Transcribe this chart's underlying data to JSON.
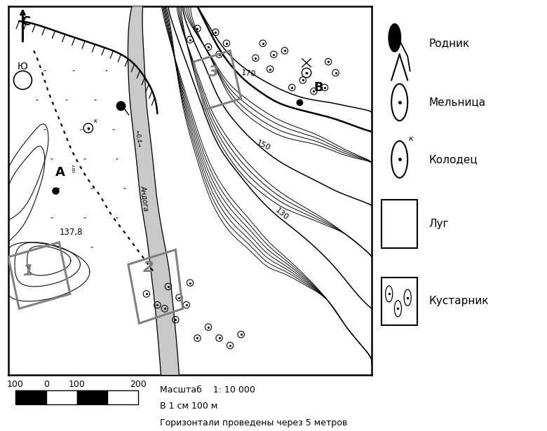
{
  "bg_color": "#ffffff",
  "scale_text1": "Масштаб    1: 10 000",
  "scale_text2": "В 1 см 100 м",
  "scale_text3": "Горизонтали проведены через 5 метров",
  "scale_nums": [
    "100",
    "0",
    "100",
    "200"
  ],
  "legend": [
    "Родник",
    "Мельница",
    "Колодец",
    "Луг",
    "Кустарник"
  ]
}
